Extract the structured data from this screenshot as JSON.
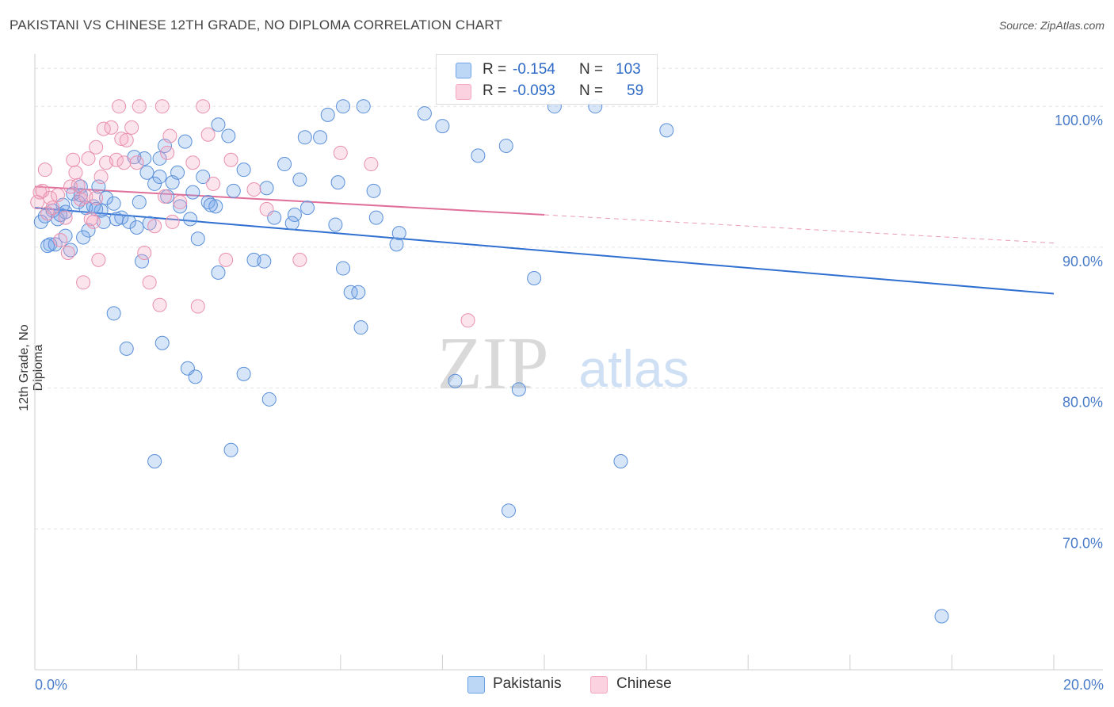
{
  "title": "PAKISTANI VS CHINESE 12TH GRADE, NO DIPLOMA CORRELATION CHART",
  "source": "Source: ZipAtlas.com",
  "watermark": {
    "zip": "ZIP",
    "atlas": "atlas"
  },
  "legend": {
    "rows": [
      {
        "r_label": "R =",
        "r_value": "-0.154",
        "n_label": "N =",
        "n_value": "103",
        "color": "#6fa3e8"
      },
      {
        "r_label": "R =",
        "r_value": "-0.093",
        "n_label": "N =",
        "n_value": "59",
        "color": "#f4a7c0"
      }
    ]
  },
  "bottom_legend": [
    "Pakistanis",
    "Chinese"
  ],
  "chart_data": {
    "type": "scatter",
    "title": "PAKISTANI VS CHINESE 12TH GRADE, NO DIPLOMA CORRELATION CHART",
    "xlabel": "",
    "ylabel": "12th Grade, No Diploma",
    "xlim": [
      0,
      20
    ],
    "ylim": [
      60,
      103.5
    ],
    "x_tick_labels": [
      "0.0%",
      "20.0%"
    ],
    "y_ticks": [
      70,
      80,
      90,
      100
    ],
    "y_tick_labels": [
      "70.0%",
      "80.0%",
      "90.0%",
      "100.0%"
    ],
    "series": [
      {
        "name": "Pakistanis",
        "color": "#6fa3e8",
        "stroke": "#5a8fd8",
        "trend": {
          "x0": 0,
          "y0": 92.8,
          "x1": 20,
          "y1": 86.7,
          "dash_from": null
        },
        "points": [
          [
            0.12,
            91.8
          ],
          [
            0.2,
            92.2
          ],
          [
            0.3,
            90.2
          ],
          [
            0.35,
            92.6
          ],
          [
            0.45,
            92.0
          ],
          [
            0.55,
            93.0
          ],
          [
            0.6,
            90.8
          ],
          [
            0.7,
            89.8
          ],
          [
            0.75,
            93.8
          ],
          [
            0.85,
            93.2
          ],
          [
            0.9,
            93.7
          ],
          [
            1.0,
            92.8
          ],
          [
            1.05,
            91.2
          ],
          [
            1.15,
            92.9
          ],
          [
            1.25,
            94.3
          ],
          [
            1.3,
            92.6
          ],
          [
            1.4,
            93.5
          ],
          [
            1.55,
            93.1
          ],
          [
            1.7,
            92.1
          ],
          [
            1.85,
            91.8
          ],
          [
            2.05,
            93.2
          ],
          [
            2.15,
            96.3
          ],
          [
            2.2,
            95.3
          ],
          [
            2.35,
            94.5
          ],
          [
            2.45,
            95.0
          ],
          [
            2.55,
            97.2
          ],
          [
            2.6,
            93.6
          ],
          [
            2.85,
            92.9
          ],
          [
            2.95,
            97.5
          ],
          [
            3.05,
            92.0
          ],
          [
            3.1,
            93.9
          ],
          [
            3.3,
            95.0
          ],
          [
            3.4,
            93.2
          ],
          [
            3.55,
            92.9
          ],
          [
            3.6,
            98.7
          ],
          [
            3.8,
            97.9
          ],
          [
            3.9,
            94.0
          ],
          [
            4.1,
            95.5
          ],
          [
            4.3,
            89.1
          ],
          [
            4.55,
            94.2
          ],
          [
            4.7,
            92.1
          ],
          [
            4.9,
            95.9
          ],
          [
            5.1,
            92.3
          ],
          [
            5.2,
            94.8
          ],
          [
            5.3,
            97.8
          ],
          [
            5.35,
            92.8
          ],
          [
            5.6,
            97.8
          ],
          [
            5.75,
            99.4
          ],
          [
            5.95,
            94.6
          ],
          [
            6.05,
            88.5
          ],
          [
            6.05,
            100.0
          ],
          [
            6.2,
            86.8
          ],
          [
            6.35,
            86.8
          ],
          [
            6.4,
            84.3
          ],
          [
            6.45,
            100.0
          ],
          [
            6.7,
            92.1
          ],
          [
            7.1,
            90.2
          ],
          [
            7.15,
            91.0
          ],
          [
            7.65,
            99.5
          ],
          [
            8.0,
            98.6
          ],
          [
            8.7,
            96.5
          ],
          [
            9.25,
            97.2
          ],
          [
            9.5,
            79.9
          ],
          [
            9.8,
            87.8
          ],
          [
            10.2,
            100.0
          ],
          [
            11.0,
            100.0
          ],
          [
            12.4,
            98.3
          ],
          [
            1.55,
            85.3
          ],
          [
            1.8,
            82.8
          ],
          [
            2.5,
            83.2
          ],
          [
            3.0,
            81.4
          ],
          [
            3.15,
            80.8
          ],
          [
            3.85,
            75.6
          ],
          [
            4.1,
            81.0
          ],
          [
            4.6,
            79.2
          ],
          [
            2.35,
            74.8
          ],
          [
            8.25,
            80.5
          ],
          [
            9.3,
            71.3
          ],
          [
            11.5,
            74.8
          ],
          [
            17.8,
            63.8
          ],
          [
            0.25,
            90.1
          ],
          [
            0.4,
            90.2
          ],
          [
            0.6,
            92.5
          ],
          [
            0.95,
            90.7
          ],
          [
            1.2,
            92.7
          ],
          [
            1.35,
            91.8
          ],
          [
            1.6,
            92.0
          ],
          [
            2.0,
            91.4
          ],
          [
            2.1,
            89.0
          ],
          [
            2.25,
            91.7
          ],
          [
            2.7,
            94.6
          ],
          [
            3.2,
            90.6
          ],
          [
            3.45,
            93.0
          ],
          [
            3.6,
            88.2
          ],
          [
            4.5,
            89.0
          ],
          [
            5.05,
            91.7
          ],
          [
            5.9,
            91.6
          ],
          [
            6.65,
            94.0
          ],
          [
            2.8,
            95.3
          ],
          [
            2.45,
            96.3
          ],
          [
            1.95,
            96.4
          ],
          [
            0.5,
            92.3
          ],
          [
            0.9,
            94.3
          ]
        ]
      },
      {
        "name": "Chinese",
        "color": "#f4a7c0",
        "stroke": "#e890ae",
        "trend": {
          "x0": 0,
          "y0": 94.3,
          "x1": 20,
          "y1": 90.3,
          "dash_from": 10
        },
        "points": [
          [
            0.05,
            93.2
          ],
          [
            0.1,
            93.9
          ],
          [
            0.15,
            94.0
          ],
          [
            0.2,
            95.5
          ],
          [
            0.25,
            92.4
          ],
          [
            0.3,
            93.5
          ],
          [
            0.35,
            92.8
          ],
          [
            0.45,
            93.7
          ],
          [
            0.5,
            90.5
          ],
          [
            0.6,
            92.1
          ],
          [
            0.65,
            89.6
          ],
          [
            0.7,
            94.3
          ],
          [
            0.75,
            96.2
          ],
          [
            0.8,
            95.3
          ],
          [
            0.85,
            94.4
          ],
          [
            0.9,
            93.4
          ],
          [
            0.95,
            87.5
          ],
          [
            1.0,
            93.6
          ],
          [
            1.05,
            96.3
          ],
          [
            1.1,
            92.0
          ],
          [
            1.15,
            91.8
          ],
          [
            1.2,
            93.5
          ],
          [
            1.25,
            89.1
          ],
          [
            1.3,
            95.0
          ],
          [
            1.35,
            98.4
          ],
          [
            1.4,
            96.0
          ],
          [
            1.5,
            98.5
          ],
          [
            1.6,
            96.2
          ],
          [
            1.7,
            97.7
          ],
          [
            1.75,
            96.0
          ],
          [
            1.8,
            97.6
          ],
          [
            1.9,
            98.5
          ],
          [
            2.0,
            96.0
          ],
          [
            2.05,
            100.0
          ],
          [
            2.15,
            89.6
          ],
          [
            2.25,
            87.5
          ],
          [
            2.35,
            91.5
          ],
          [
            2.5,
            100.0
          ],
          [
            2.55,
            93.6
          ],
          [
            2.6,
            96.7
          ],
          [
            2.65,
            97.9
          ],
          [
            2.7,
            91.8
          ],
          [
            2.85,
            93.2
          ],
          [
            3.1,
            96.0
          ],
          [
            3.2,
            85.8
          ],
          [
            3.3,
            100.0
          ],
          [
            3.4,
            98.0
          ],
          [
            3.5,
            94.5
          ],
          [
            3.75,
            89.1
          ],
          [
            3.85,
            96.2
          ],
          [
            4.3,
            94.1
          ],
          [
            4.55,
            92.7
          ],
          [
            5.2,
            89.1
          ],
          [
            6.0,
            96.7
          ],
          [
            6.6,
            95.9
          ],
          [
            8.5,
            84.8
          ],
          [
            1.65,
            100.0
          ],
          [
            1.2,
            97.1
          ],
          [
            2.45,
            85.9
          ]
        ]
      }
    ]
  }
}
